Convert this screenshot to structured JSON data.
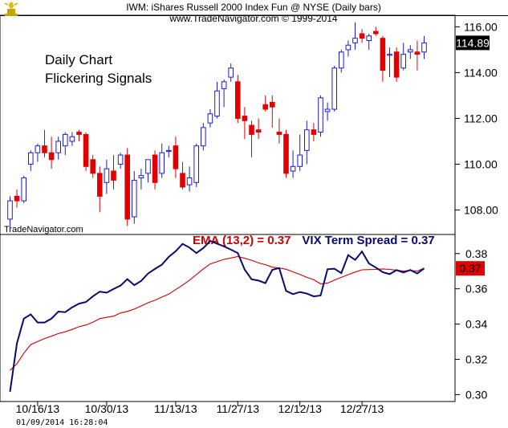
{
  "header": {
    "line1": "IWM:  iShares Russell 2000 Index Fun @ NYSE  (Daily bars)",
    "line2": "www.TradeNavigator.com © 1999-2014"
  },
  "annotation": {
    "line1": "Daily Chart",
    "line2": "Flickering Signals"
  },
  "credit": "TradeNavigator.com",
  "timestamp": "01/09/2014  16:28:04",
  "colors": {
    "up": "#1c1cd6",
    "down": "#e00000",
    "spread": "#0a0a6e",
    "ema": "#cc0000"
  },
  "chart_data": [
    {
      "type": "candlestick",
      "title": "",
      "last_price": "114.89",
      "ylim": [
        107,
        116.4
      ],
      "yticks": [
        "116.00",
        "114.00",
        "112.00",
        "110.00",
        "108.00"
      ],
      "x_tick_labels": [
        {
          "i": 4,
          "label": "10/16/13"
        },
        {
          "i": 14,
          "label": "10/30/13"
        },
        {
          "i": 24,
          "label": "11/13/13"
        },
        {
          "i": 33,
          "label": "11/27/13"
        },
        {
          "i": 42,
          "label": "12/12/13"
        },
        {
          "i": 51,
          "label": "12/27/13"
        }
      ],
      "bars": [
        [
          107.6,
          108.6,
          107.2,
          108.4
        ],
        [
          108.6,
          108.9,
          108.1,
          108.4
        ],
        [
          108.4,
          109.5,
          108.3,
          109.4
        ],
        [
          110.0,
          110.6,
          109.7,
          110.5
        ],
        [
          110.5,
          110.9,
          110.1,
          110.8
        ],
        [
          110.8,
          111.5,
          110.3,
          110.5
        ],
        [
          110.5,
          111.2,
          109.8,
          110.2
        ],
        [
          110.5,
          111.2,
          110.2,
          111.0
        ],
        [
          110.8,
          111.4,
          110.4,
          111.3
        ],
        [
          111.0,
          111.4,
          110.8,
          111.2
        ],
        [
          111.4,
          111.5,
          111.0,
          111.3
        ],
        [
          111.3,
          111.4,
          109.7,
          109.9
        ],
        [
          110.2,
          110.4,
          109.4,
          109.6
        ],
        [
          109.6,
          109.9,
          107.9,
          108.6
        ],
        [
          109.2,
          110.2,
          108.7,
          109.8
        ],
        [
          109.7,
          110.4,
          108.9,
          109.3
        ],
        [
          110.0,
          110.5,
          109.8,
          110.4
        ],
        [
          110.4,
          110.7,
          107.3,
          107.6
        ],
        [
          107.7,
          109.7,
          107.4,
          109.3
        ],
        [
          109.4,
          109.8,
          108.9,
          109.5
        ],
        [
          109.6,
          110.2,
          109.2,
          110.2
        ],
        [
          110.4,
          110.6,
          108.9,
          109.2
        ],
        [
          109.6,
          110.9,
          109.4,
          110.5
        ],
        [
          110.6,
          110.8,
          110.3,
          110.6
        ],
        [
          110.8,
          111.2,
          109.4,
          109.8
        ],
        [
          109.6,
          110.1,
          108.9,
          109.0
        ],
        [
          109.1,
          109.9,
          108.8,
          109.4
        ],
        [
          109.2,
          110.9,
          109.0,
          110.8
        ],
        [
          110.8,
          111.8,
          110.6,
          111.6
        ],
        [
          111.8,
          112.4,
          111.6,
          112.2
        ],
        [
          112.1,
          113.6,
          112.0,
          113.2
        ],
        [
          113.3,
          113.7,
          112.5,
          113.6
        ],
        [
          113.8,
          114.4,
          113.6,
          114.2
        ],
        [
          113.6,
          113.9,
          111.8,
          112.0
        ],
        [
          112.1,
          112.5,
          111.1,
          111.9
        ],
        [
          111.7,
          111.9,
          110.3,
          111.3
        ],
        [
          111.5,
          112.0,
          111.1,
          111.4
        ],
        [
          112.6,
          113.0,
          112.3,
          112.4
        ],
        [
          112.7,
          113.0,
          111.6,
          112.5
        ],
        [
          111.4,
          112.0,
          110.9,
          111.3
        ],
        [
          111.3,
          111.5,
          109.4,
          109.6
        ],
        [
          109.7,
          110.6,
          109.4,
          109.9
        ],
        [
          109.9,
          111.3,
          109.7,
          110.4
        ],
        [
          110.6,
          111.9,
          110.0,
          111.5
        ],
        [
          111.5,
          111.8,
          111.0,
          111.3
        ],
        [
          111.4,
          113.0,
          111.2,
          112.9
        ],
        [
          112.3,
          112.7,
          111.9,
          112.4
        ],
        [
          112.4,
          114.3,
          112.3,
          114.2
        ],
        [
          114.2,
          115.0,
          114.0,
          114.9
        ],
        [
          115.0,
          115.4,
          114.7,
          115.2
        ],
        [
          115.3,
          116.2,
          115.0,
          115.5
        ],
        [
          115.7,
          115.9,
          115.3,
          115.5
        ],
        [
          115.4,
          115.7,
          115.0,
          115.6
        ],
        [
          115.8,
          116.0,
          115.6,
          115.7
        ],
        [
          115.5,
          115.6,
          113.6,
          114.1
        ],
        [
          114.8,
          115.1,
          113.8,
          114.8
        ],
        [
          114.9,
          115.1,
          113.6,
          113.8
        ],
        [
          114.2,
          115.3,
          114.1,
          114.8
        ],
        [
          114.9,
          115.2,
          114.6,
          115.0
        ],
        [
          114.9,
          115.4,
          114.1,
          114.8
        ],
        [
          114.9,
          115.6,
          114.6,
          115.3
        ]
      ]
    },
    {
      "type": "line",
      "title": "",
      "ylim": [
        0.297,
        0.389
      ],
      "yticks": [
        "0.38",
        "0.36",
        "0.34",
        "0.32",
        "0.30"
      ],
      "last_value": "0.37",
      "series": [
        {
          "name": "EMA (13,2) = 0.37",
          "color": "#cc0000",
          "values": [
            0.3137,
            0.3175,
            0.3235,
            0.3284,
            0.3301,
            0.3318,
            0.3331,
            0.3346,
            0.3356,
            0.337,
            0.3385,
            0.3395,
            0.3411,
            0.3431,
            0.3438,
            0.3445,
            0.3463,
            0.3472,
            0.3485,
            0.3503,
            0.3521,
            0.3535,
            0.3553,
            0.357,
            0.3596,
            0.3621,
            0.3649,
            0.3681,
            0.3713,
            0.3741,
            0.3754,
            0.3767,
            0.3775,
            0.3783,
            0.3773,
            0.3762,
            0.3747,
            0.3737,
            0.3723,
            0.3718,
            0.3711,
            0.3696,
            0.3682,
            0.3665,
            0.3652,
            0.3628,
            0.3632,
            0.3649,
            0.3665,
            0.368,
            0.3695,
            0.3708,
            0.3709,
            0.371,
            0.3713,
            0.371,
            0.3706,
            0.3701,
            0.3704,
            0.37,
            0.3718
          ]
        },
        {
          "name": "VIX Term Spread = 0.37",
          "color": "#0a0a6e",
          "values": [
            0.3016,
            0.3291,
            0.3431,
            0.3455,
            0.3409,
            0.3409,
            0.3431,
            0.3471,
            0.3468,
            0.3495,
            0.3516,
            0.3525,
            0.3557,
            0.3584,
            0.3578,
            0.3599,
            0.3618,
            0.3655,
            0.3621,
            0.3645,
            0.3687,
            0.3713,
            0.3737,
            0.3781,
            0.3813,
            0.3855,
            0.3834,
            0.3803,
            0.3831,
            0.3872,
            0.3856,
            0.3841,
            0.3822,
            0.3803,
            0.3709,
            0.3654,
            0.3647,
            0.3632,
            0.3708,
            0.3718,
            0.3588,
            0.357,
            0.3582,
            0.3573,
            0.3557,
            0.3562,
            0.3711,
            0.3714,
            0.3689,
            0.3791,
            0.3764,
            0.3811,
            0.3744,
            0.3721,
            0.3694,
            0.3683,
            0.3706,
            0.3693,
            0.3707,
            0.3687,
            0.3716
          ]
        }
      ]
    }
  ]
}
